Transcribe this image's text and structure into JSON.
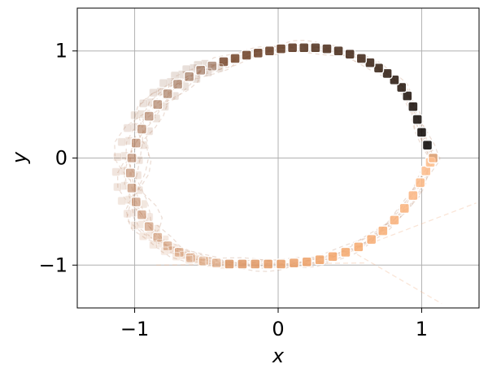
{
  "chart_data": {
    "type": "scatter",
    "title": "",
    "xlabel": "x",
    "ylabel": "y",
    "xlim": [
      -1.4,
      1.4
    ],
    "ylim": [
      -1.4,
      1.4
    ],
    "xticks": [
      -1,
      0,
      1
    ],
    "yticks": [
      -1,
      0,
      1
    ],
    "xtick_labels": [
      "−1",
      "0",
      "1"
    ],
    "ytick_labels": [
      "−1",
      "0",
      "1"
    ],
    "grid": true,
    "legend": "none",
    "colormap": [
      "#000000",
      "#3a2214",
      "#6e4126",
      "#a86a45",
      "#d49062",
      "#f4a66a",
      "#ffc090"
    ],
    "marker_edge_color": "#ffffff",
    "trail_color": "#c9a089",
    "trajectory": {
      "x": [
        1.08,
        1.04,
        1.0,
        0.97,
        0.94,
        0.9,
        0.86,
        0.81,
        0.76,
        0.7,
        0.64,
        0.58,
        0.5,
        0.42,
        0.34,
        0.26,
        0.18,
        0.1,
        0.02,
        -0.06,
        -0.14,
        -0.22,
        -0.3,
        -0.38,
        -0.46,
        -0.54,
        -0.62,
        -0.7,
        -0.77,
        -0.84,
        -0.9,
        -0.95,
        -0.99,
        -1.02,
        -1.03,
        -1.02,
        -0.99,
        -0.95,
        -0.9,
        -0.84,
        -0.77,
        -0.69,
        -0.61,
        -0.52,
        -0.43,
        -0.34,
        -0.25,
        -0.16,
        -0.07,
        0.02,
        0.11,
        0.2,
        0.29,
        0.38,
        0.47,
        0.56,
        0.65,
        0.73,
        0.81,
        0.88,
        0.94,
        0.99,
        1.03,
        1.06,
        1.08
      ],
      "y": [
        0.0,
        0.12,
        0.24,
        0.36,
        0.48,
        0.58,
        0.66,
        0.73,
        0.79,
        0.84,
        0.89,
        0.93,
        0.97,
        1.0,
        1.02,
        1.03,
        1.03,
        1.03,
        1.02,
        1.0,
        0.98,
        0.96,
        0.93,
        0.9,
        0.86,
        0.82,
        0.76,
        0.69,
        0.6,
        0.5,
        0.39,
        0.27,
        0.14,
        0.0,
        -0.14,
        -0.28,
        -0.41,
        -0.53,
        -0.64,
        -0.74,
        -0.82,
        -0.88,
        -0.93,
        -0.96,
        -0.98,
        -0.99,
        -0.99,
        -0.99,
        -0.99,
        -0.99,
        -0.98,
        -0.97,
        -0.95,
        -0.92,
        -0.88,
        -0.83,
        -0.76,
        -0.68,
        -0.58,
        -0.47,
        -0.35,
        -0.23,
        -0.12,
        -0.04,
        0.0
      ]
    },
    "stray_trails": [
      {
        "x": [
          0.52,
          1.38
        ],
        "y": [
          -0.86,
          -0.42
        ]
      },
      {
        "x": [
          0.55,
          1.14
        ],
        "y": [
          -0.9,
          -1.36
        ]
      },
      {
        "x": [
          -0.85,
          0.6
        ],
        "y": [
          -1.0,
          -0.98
        ]
      }
    ]
  }
}
